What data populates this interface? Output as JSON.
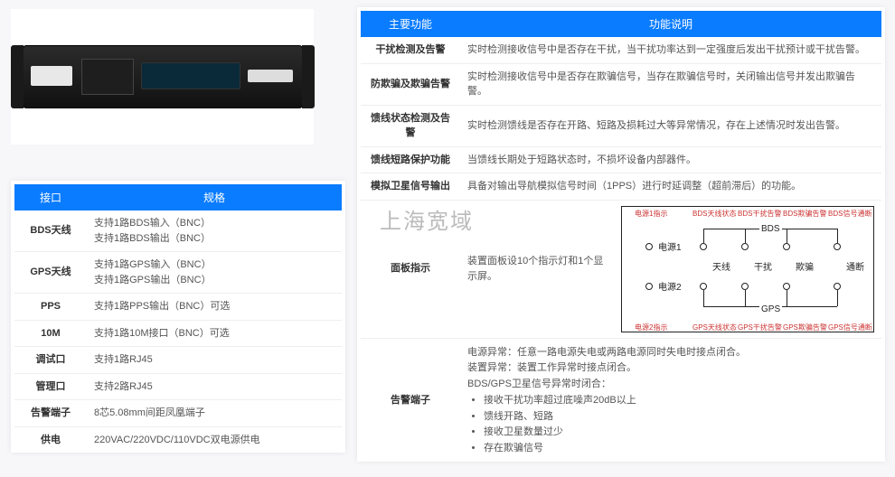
{
  "watermark": "上海宽域",
  "leftTable": {
    "headers": [
      "接口",
      "规格"
    ],
    "rows": [
      {
        "k": "BDS天线",
        "v": "支持1路BDS输入（BNC）\n支持1路BDS输出（BNC）"
      },
      {
        "k": "GPS天线",
        "v": "支持1路GPS输入（BNC）\n支持1路GPS输出（BNC）"
      },
      {
        "k": "PPS",
        "v": "支持1路PPS输出（BNC）可选"
      },
      {
        "k": "10M",
        "v": "支持1路10M接口（BNC）可选"
      },
      {
        "k": "调试口",
        "v": "支持1路RJ45"
      },
      {
        "k": "管理口",
        "v": "支持2路RJ45"
      },
      {
        "k": "告警端子",
        "v": "8芯5.08mm间距凤凰端子"
      },
      {
        "k": "供电",
        "v": "220VAC/220VDC/110VDC双电源供电"
      }
    ]
  },
  "rightTable": {
    "headers": [
      "主要功能",
      "功能说明"
    ],
    "rows": [
      {
        "k": "干扰检测及告警",
        "v": "实时检测接收信号中是否存在干扰，当干扰功率达到一定强度后发出干扰预计或干扰告警。"
      },
      {
        "k": "防欺骗及欺骗告警",
        "v": "实时检测接收信号中是否存在欺骗信号，当存在欺骗信号时，关闭输出信号并发出欺骗告警。"
      },
      {
        "k": "馈线状态检测及告警",
        "v": "实时检测馈线是否存在开路、短路及损耗过大等异常情况，存在上述情况时发出告警。"
      },
      {
        "k": "馈线短路保护功能",
        "v": "当馈线长期处于短路状态时，不损坏设备内部器件。"
      },
      {
        "k": "模拟卫星信号输出",
        "v": "具备对输出导航模拟信号时间（1PPS）进行时延调整（超前滞后）的功能。"
      },
      {
        "k": "面板指示",
        "v": "装置面板设10个指示灯和1个显示屏。"
      },
      {
        "k": "告警端子",
        "lines": [
          "电源异常：任意一路电源失电或两路电源同时失电时接点闭合。",
          "装置异常：装置工作异常时接点闭合。",
          "BDS/GPS卫星信号异常时闭合："
        ],
        "bullets": [
          "接收干扰功率超过底噪声20dB以上",
          "馈线开路、短路",
          "接收卫星数量过少",
          "存在欺骗信号"
        ]
      }
    ]
  },
  "panel": {
    "topTiny": [
      "电源1指示",
      "BDS天线状态",
      "BDS干扰告警",
      "BDS欺骗告警",
      "BDS信号通断"
    ],
    "botTiny": [
      "电源2指示",
      "GPS天线状态",
      "GPS干扰告警",
      "GPS欺骗告警",
      "GPS信号通断"
    ],
    "leftLabels": [
      "电源1",
      "电源2"
    ],
    "colLabels": [
      "天线",
      "干扰",
      "欺骗",
      "通断"
    ],
    "bracketTop": "BDS",
    "bracketBot": "GPS"
  }
}
